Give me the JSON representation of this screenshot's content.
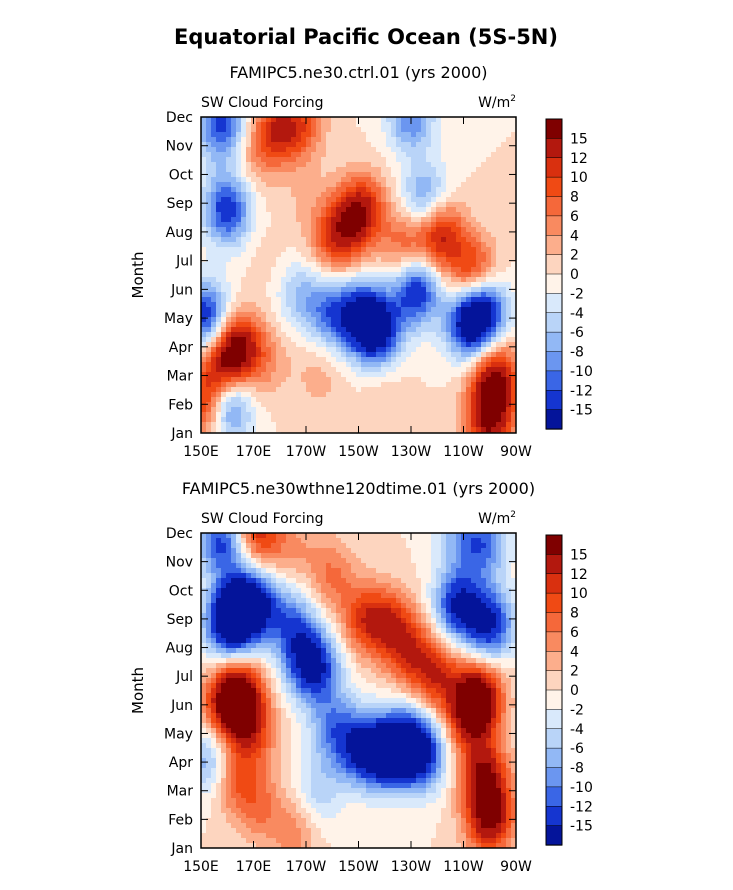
{
  "title": "Equatorial Pacific Ocean (5S-5N)",
  "chart_data": [
    {
      "type": "heatmap",
      "title": "FAMIPC5.ne30.ctrl.01 (yrs 2000)",
      "left_label": "SW Cloud Forcing",
      "right_label": "W/m",
      "right_label_sup": "2",
      "ylabel": "Month",
      "x_ticks": [
        "150E",
        "170E",
        "170W",
        "150W",
        "130W",
        "110W",
        "90W"
      ],
      "y_ticks": [
        "Jan",
        "Feb",
        "Mar",
        "Apr",
        "May",
        "Jun",
        "Jul",
        "Aug",
        "Sep",
        "Oct",
        "Nov",
        "Dec"
      ],
      "xlim": [
        "150E",
        "90W"
      ],
      "colorbar": {
        "labels": [
          "15",
          "12",
          "10",
          "8",
          "6",
          "4",
          "2",
          "0",
          "-2",
          "-4",
          "-6",
          "-8",
          "-10",
          "-12",
          "-15"
        ],
        "colors": [
          "#7f0000",
          "#b3180e",
          "#d9300f",
          "#f04a14",
          "#f5683a",
          "#f98a60",
          "#fcae8c",
          "#fdd5bf",
          "#fff3e9",
          "#d9e9fb",
          "#b9d4f8",
          "#92b8f5",
          "#6b96f0",
          "#3a66e6",
          "#1535d0",
          "#04149a"
        ]
      },
      "blobs": [
        {
          "x": 160,
          "y": 1,
          "v": -14
        },
        {
          "x": 152,
          "y": 4,
          "v": -15
        },
        {
          "x": 160,
          "y": 7.8,
          "v": -14
        },
        {
          "x": 158,
          "y": 10.7,
          "v": -13
        },
        {
          "x": 232,
          "y": 5,
          "v": -15
        },
        {
          "x": 236,
          "y": 8,
          "v": -14
        },
        {
          "x": 230,
          "y": 11,
          "v": -10
        },
        {
          "x": 212,
          "y": 4,
          "v": -15
        },
        {
          "x": 218,
          "y": 3.5,
          "v": -13
        },
        {
          "x": 200,
          "y": 4.2,
          "v": -10
        },
        {
          "x": 188,
          "y": 4.8,
          "v": -6
        },
        {
          "x": 164,
          "y": 3,
          "v": 14
        },
        {
          "x": 158,
          "y": 2.3,
          "v": 11
        },
        {
          "x": 152,
          "y": 1,
          "v": 12
        },
        {
          "x": 175,
          "y": 2.5,
          "v": 4
        },
        {
          "x": 195,
          "y": 2,
          "v": 3
        },
        {
          "x": 220,
          "y": 1.5,
          "v": 2
        },
        {
          "x": 252,
          "y": 3.8,
          "v": -15
        },
        {
          "x": 258,
          "y": 4.3,
          "v": -15
        },
        {
          "x": 260,
          "y": 0.5,
          "v": 15
        },
        {
          "x": 262,
          "y": 2,
          "v": 14
        },
        {
          "x": 254,
          "y": 5.5,
          "v": 12
        },
        {
          "x": 242,
          "y": 6.8,
          "v": 10
        },
        {
          "x": 238,
          "y": 7.5,
          "v": 8
        },
        {
          "x": 228,
          "y": 6.5,
          "v": 8
        },
        {
          "x": 212,
          "y": 7.8,
          "v": 11
        },
        {
          "x": 205,
          "y": 7.2,
          "v": 9
        },
        {
          "x": 200,
          "y": 6.5,
          "v": 6
        },
        {
          "x": 178,
          "y": 10.5,
          "v": 10
        },
        {
          "x": 188,
          "y": 10.7,
          "v": 8
        },
        {
          "x": 170,
          "y": 9.5,
          "v": 3
        },
        {
          "x": 175,
          "y": 6,
          "v": 1
        },
        {
          "x": 190,
          "y": 8,
          "v": 2
        }
      ]
    },
    {
      "type": "heatmap",
      "title": "FAMIPC5.ne30wthne120dtime.01 (yrs 2000)",
      "left_label": "SW Cloud Forcing",
      "right_label": "W/m",
      "right_label_sup": "2",
      "ylabel": "Month",
      "x_ticks": [
        "150E",
        "170E",
        "170W",
        "150W",
        "130W",
        "110W",
        "90W"
      ],
      "y_ticks": [
        "Jan",
        "Feb",
        "Mar",
        "Apr",
        "May",
        "Jun",
        "Jul",
        "Aug",
        "Sep",
        "Oct",
        "Nov",
        "Dec"
      ],
      "xlim": [
        "150E",
        "90W"
      ],
      "colorbar": {
        "labels": [
          "15",
          "12",
          "10",
          "8",
          "6",
          "4",
          "2",
          "0",
          "-2",
          "-4",
          "-6",
          "-8",
          "-10",
          "-12",
          "-15"
        ],
        "colors": [
          "#7f0000",
          "#b3180e",
          "#d9300f",
          "#f04a14",
          "#f5683a",
          "#f98a60",
          "#fcae8c",
          "#fdd5bf",
          "#fff3e9",
          "#d9e9fb",
          "#b9d4f8",
          "#92b8f5",
          "#6b96f0",
          "#3a66e6",
          "#1535d0",
          "#04149a"
        ]
      },
      "blobs": [
        {
          "x": 165,
          "y": 8.3,
          "v": -15
        },
        {
          "x": 160,
          "y": 7.8,
          "v": -14
        },
        {
          "x": 172,
          "y": 8.6,
          "v": -12
        },
        {
          "x": 185,
          "y": 7.8,
          "v": -9
        },
        {
          "x": 158,
          "y": 10.7,
          "v": -13
        },
        {
          "x": 154,
          "y": 3,
          "v": -9
        },
        {
          "x": 190,
          "y": 6.5,
          "v": -12
        },
        {
          "x": 196,
          "y": 6.2,
          "v": -8
        },
        {
          "x": 220,
          "y": 3.3,
          "v": -15
        },
        {
          "x": 228,
          "y": 3.6,
          "v": -15
        },
        {
          "x": 210,
          "y": 3.5,
          "v": -13
        },
        {
          "x": 235,
          "y": 3.3,
          "v": -12
        },
        {
          "x": 200,
          "y": 4.2,
          "v": -8
        },
        {
          "x": 195,
          "y": 2,
          "v": -5
        },
        {
          "x": 248,
          "y": 8.5,
          "v": -15
        },
        {
          "x": 260,
          "y": 7.8,
          "v": -15
        },
        {
          "x": 258,
          "y": 10.6,
          "v": -10
        },
        {
          "x": 248,
          "y": 11,
          "v": -6
        },
        {
          "x": 260,
          "y": 1,
          "v": 15
        },
        {
          "x": 258,
          "y": 2.5,
          "v": 14
        },
        {
          "x": 252,
          "y": 4.6,
          "v": 12
        },
        {
          "x": 256,
          "y": 5.3,
          "v": 15
        },
        {
          "x": 240,
          "y": 6,
          "v": 10
        },
        {
          "x": 230,
          "y": 6.8,
          "v": 9
        },
        {
          "x": 222,
          "y": 7.8,
          "v": 10
        },
        {
          "x": 212,
          "y": 8,
          "v": 9
        },
        {
          "x": 165,
          "y": 5.3,
          "v": 15
        },
        {
          "x": 160,
          "y": 5,
          "v": 12
        },
        {
          "x": 170,
          "y": 4,
          "v": 8
        },
        {
          "x": 162,
          "y": 2.5,
          "v": 8
        },
        {
          "x": 172,
          "y": 1.5,
          "v": 6
        },
        {
          "x": 185,
          "y": 0.5,
          "v": 5
        },
        {
          "x": 175,
          "y": 10.5,
          "v": 6
        },
        {
          "x": 170,
          "y": 11.5,
          "v": 9
        },
        {
          "x": 200,
          "y": 9.5,
          "v": 6
        },
        {
          "x": 188,
          "y": 10.5,
          "v": 3
        }
      ]
    }
  ]
}
